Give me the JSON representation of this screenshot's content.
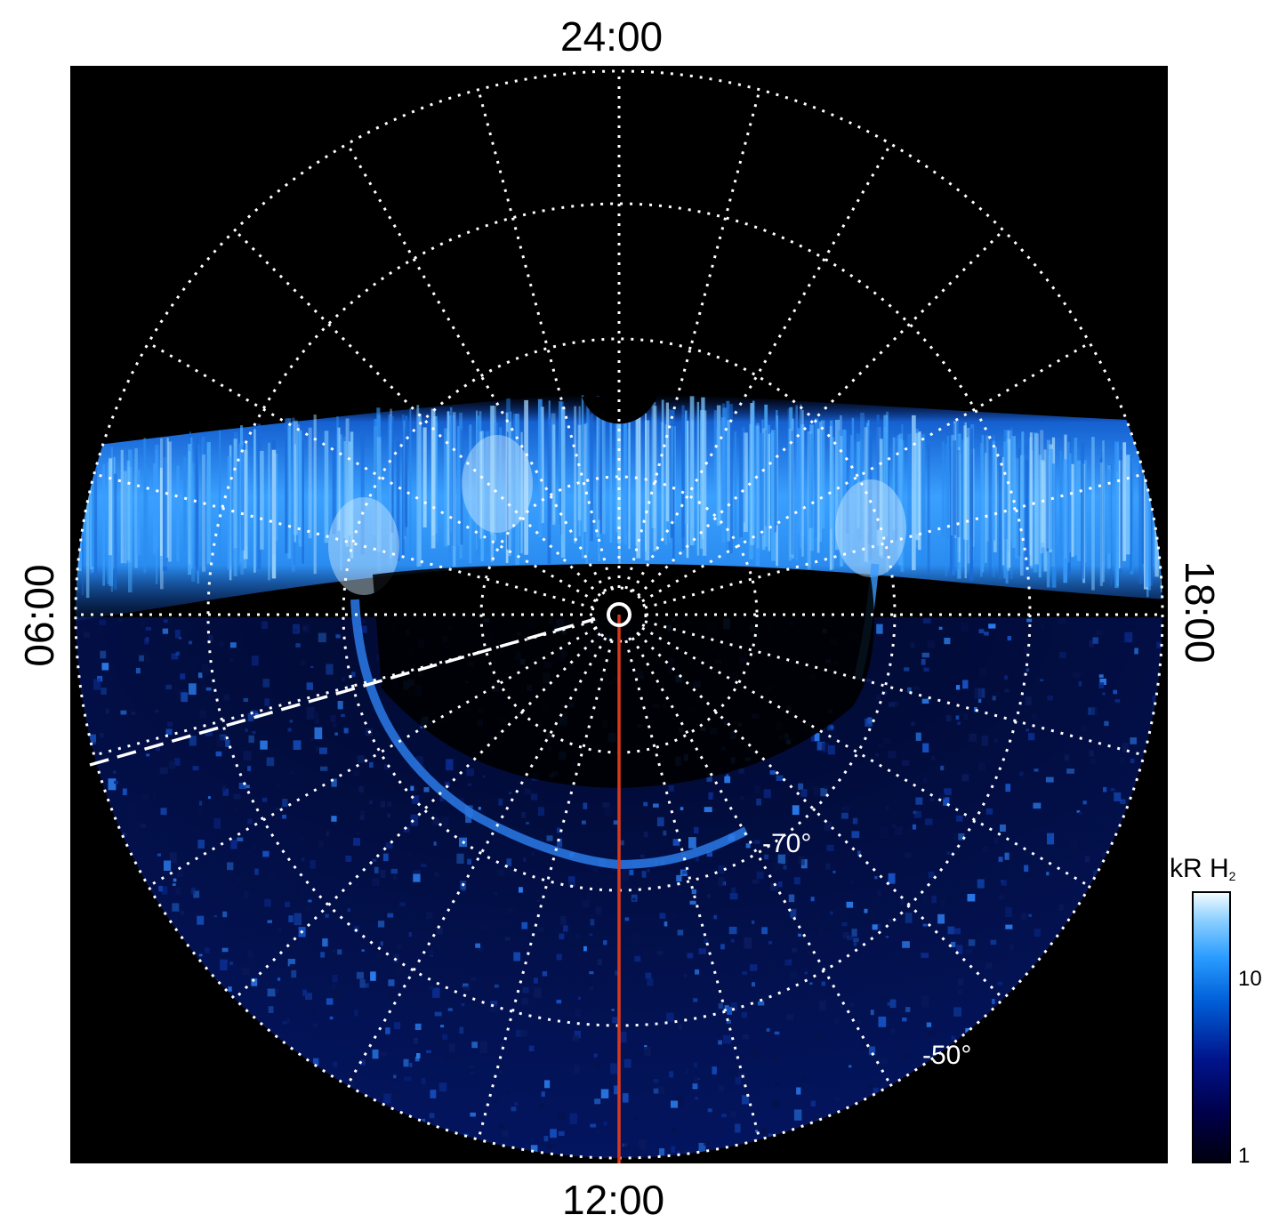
{
  "axes": {
    "top_label": "24:00",
    "bottom_label": "12:00",
    "left_label": "06:00",
    "right_label": "18:00"
  },
  "latitude_labels": [
    "-70°",
    "-50°"
  ],
  "colorbar": {
    "title_main": "kR H",
    "title_sub": "2",
    "ticks": [
      "10",
      "1"
    ],
    "colors": [
      "#000010",
      "#00004a",
      "#00148c",
      "#0060d8",
      "#2a9cff",
      "#8cd0ff",
      "#f2fbff"
    ]
  },
  "colors": {
    "background": "#000000",
    "grid": "#ffffff",
    "noon_line": "#d9391c",
    "aurora_bright": "#cfeaff",
    "aurora_mid": "#2a8cf0",
    "aurora_dark": "#0a2a8a"
  }
}
